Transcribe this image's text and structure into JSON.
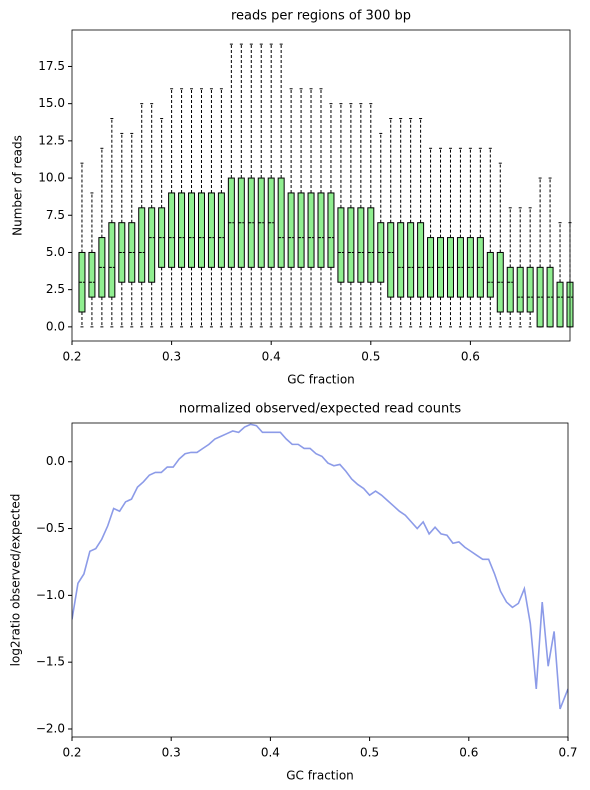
{
  "chart_data": [
    {
      "type": "box",
      "title": "reads per regions of 300 bp",
      "xlabel": "GC fraction",
      "ylabel": "Number of reads",
      "x": [
        0.21,
        0.22,
        0.23,
        0.24,
        0.25,
        0.26,
        0.27,
        0.28,
        0.29,
        0.3,
        0.31,
        0.32,
        0.33,
        0.34,
        0.35,
        0.36,
        0.37,
        0.38,
        0.39,
        0.4,
        0.41,
        0.42,
        0.43,
        0.44,
        0.45,
        0.46,
        0.47,
        0.48,
        0.49,
        0.5,
        0.51,
        0.52,
        0.53,
        0.54,
        0.55,
        0.56,
        0.57,
        0.58,
        0.59,
        0.6,
        0.61,
        0.62,
        0.63,
        0.64,
        0.65,
        0.66,
        0.67,
        0.68,
        0.69,
        0.7
      ],
      "whislo": [
        0,
        0,
        0,
        0,
        0,
        0,
        0,
        0,
        0,
        0,
        0,
        0,
        0,
        0,
        0,
        0,
        0,
        0,
        0,
        0,
        0,
        0,
        0,
        0,
        0,
        0,
        0,
        0,
        0,
        0,
        0,
        0,
        0,
        0,
        0,
        0,
        0,
        0,
        0,
        0,
        0,
        0,
        0,
        0,
        0,
        0,
        0,
        0,
        0,
        0
      ],
      "q1": [
        1,
        2,
        2,
        2,
        3,
        3,
        3,
        3,
        4,
        4,
        4,
        4,
        4,
        4,
        4,
        4,
        4,
        4,
        4,
        4,
        4,
        4,
        4,
        4,
        4,
        4,
        3,
        3,
        3,
        3,
        3,
        2,
        2,
        2,
        2,
        2,
        2,
        2,
        2,
        2,
        2,
        2,
        1,
        1,
        1,
        1,
        0,
        0,
        0,
        0
      ],
      "median": [
        3,
        3,
        4,
        4,
        5,
        5,
        5,
        6,
        6,
        6,
        6,
        6,
        6,
        6,
        6,
        7,
        7,
        7,
        7,
        7,
        6,
        6,
        6,
        6,
        6,
        6,
        5,
        5,
        5,
        5,
        5,
        5,
        4,
        4,
        4,
        4,
        4,
        4,
        4,
        4,
        4,
        3,
        3,
        3,
        2,
        2,
        2,
        2,
        2,
        2
      ],
      "q3": [
        5,
        5,
        6,
        7,
        7,
        7,
        8,
        8,
        8,
        9,
        9,
        9,
        9,
        9,
        9,
        10,
        10,
        10,
        10,
        10,
        10,
        9,
        9,
        9,
        9,
        9,
        8,
        8,
        8,
        8,
        7,
        7,
        7,
        7,
        7,
        6,
        6,
        6,
        6,
        6,
        6,
        5,
        5,
        4,
        4,
        4,
        4,
        4,
        3,
        3
      ],
      "whishi": [
        11,
        9,
        12,
        14,
        13,
        13,
        15,
        15,
        14,
        16,
        16,
        16,
        16,
        16,
        16,
        19,
        19,
        19,
        19,
        19,
        19,
        16,
        16,
        16,
        16,
        15,
        15,
        15,
        15,
        15,
        13,
        14,
        14,
        14,
        14,
        12,
        12,
        12,
        12,
        12,
        12,
        12,
        11,
        8,
        8,
        8,
        10,
        10,
        7,
        7
      ],
      "color": "#90ee90",
      "xlim": [
        0.2,
        0.7
      ],
      "ylim": [
        -0.95,
        19.95
      ],
      "xticks": [
        0.2,
        0.3,
        0.4,
        0.5,
        0.6
      ],
      "yticks": [
        {
          "value": 0,
          "label": "0.0"
        },
        2.5,
        {
          "value": 5,
          "label": "5.0"
        },
        7.5,
        {
          "value": 10,
          "label": "10.0"
        },
        12.5,
        {
          "value": 15,
          "label": "15.0"
        },
        17.5
      ]
    },
    {
      "type": "line",
      "title": "normalized observed/expected read counts",
      "xlabel": "GC fraction",
      "ylabel": "log2ratio observed/expected",
      "x": [
        0.2,
        0.206,
        0.212,
        0.218,
        0.224,
        0.23,
        0.236,
        0.242,
        0.248,
        0.254,
        0.26,
        0.266,
        0.272,
        0.278,
        0.284,
        0.29,
        0.296,
        0.302,
        0.308,
        0.314,
        0.32,
        0.326,
        0.332,
        0.338,
        0.344,
        0.35,
        0.356,
        0.362,
        0.368,
        0.374,
        0.38,
        0.386,
        0.392,
        0.398,
        0.404,
        0.41,
        0.416,
        0.422,
        0.428,
        0.434,
        0.44,
        0.446,
        0.452,
        0.458,
        0.464,
        0.47,
        0.476,
        0.482,
        0.488,
        0.494,
        0.5,
        0.506,
        0.512,
        0.518,
        0.524,
        0.53,
        0.536,
        0.542,
        0.548,
        0.554,
        0.56,
        0.566,
        0.572,
        0.578,
        0.584,
        0.59,
        0.596,
        0.602,
        0.608,
        0.614,
        0.62,
        0.626,
        0.632,
        0.638,
        0.644,
        0.65,
        0.656,
        0.662,
        0.668,
        0.674,
        0.68,
        0.686,
        0.692,
        0.7
      ],
      "values": [
        -1.18,
        -0.91,
        -0.84,
        -0.67,
        -0.65,
        -0.58,
        -0.48,
        -0.35,
        -0.37,
        -0.3,
        -0.28,
        -0.19,
        -0.15,
        -0.1,
        -0.08,
        -0.08,
        -0.04,
        -0.04,
        0.02,
        0.06,
        0.07,
        0.07,
        0.1,
        0.13,
        0.17,
        0.19,
        0.21,
        0.23,
        0.22,
        0.26,
        0.28,
        0.27,
        0.22,
        0.22,
        0.22,
        0.22,
        0.17,
        0.13,
        0.13,
        0.1,
        0.1,
        0.06,
        0.04,
        -0.01,
        -0.03,
        -0.02,
        -0.07,
        -0.13,
        -0.17,
        -0.2,
        -0.25,
        -0.22,
        -0.25,
        -0.29,
        -0.33,
        -0.37,
        -0.4,
        -0.45,
        -0.5,
        -0.45,
        -0.54,
        -0.49,
        -0.54,
        -0.55,
        -0.61,
        -0.6,
        -0.64,
        -0.67,
        -0.7,
        -0.73,
        -0.73,
        -0.84,
        -0.97,
        -1.05,
        -1.09,
        -1.06,
        -0.95,
        -1.21,
        -1.7,
        -1.05,
        -1.53,
        -1.27,
        -1.85,
        -1.7
      ],
      "color": "#8c9be8",
      "xlim": [
        0.2,
        0.7
      ],
      "ylim": [
        -2.06,
        0.29
      ],
      "xticks": [
        0.2,
        0.3,
        0.4,
        0.5,
        0.6,
        0.7
      ],
      "yticks": [
        {
          "value": -2,
          "label": "−2.0"
        },
        {
          "value": -1.5,
          "label": "−1.5"
        },
        {
          "value": -1,
          "label": "−1.0"
        },
        {
          "value": -0.5,
          "label": "−0.5"
        },
        {
          "value": 0,
          "label": "0.0"
        }
      ]
    }
  ]
}
